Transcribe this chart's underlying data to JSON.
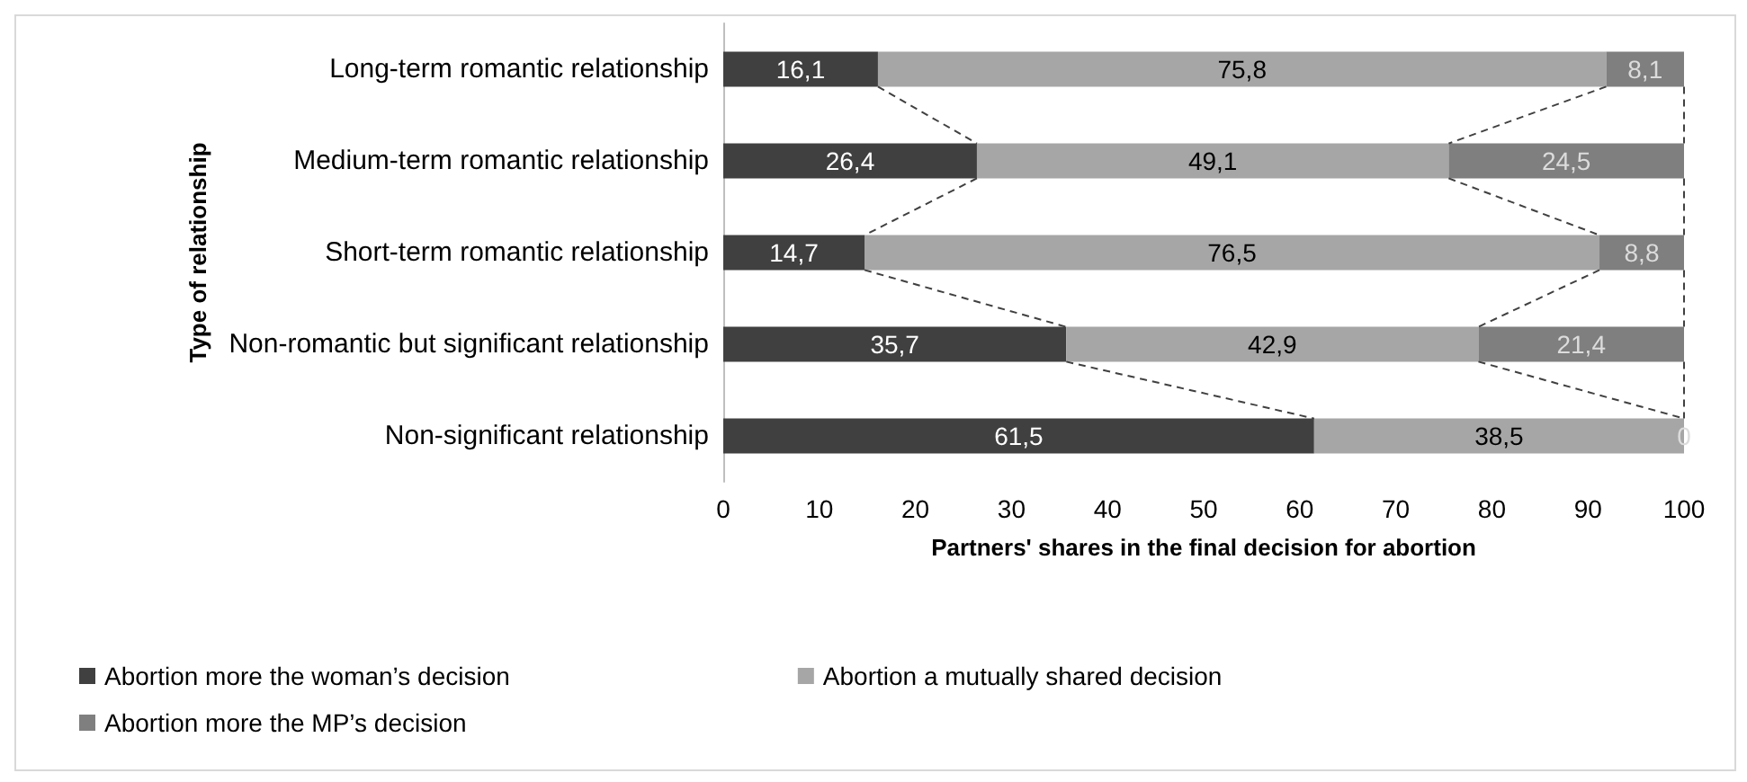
{
  "chart_data": {
    "type": "bar",
    "orientation": "horizontal",
    "stacked": true,
    "xlabel": "Partners' shares in the final decision for abortion",
    "ylabel": "Type of relationship",
    "categories": [
      "Long-term romantic relationship",
      "Medium-term romantic relationship",
      "Short-term romantic relationship",
      "Non-romantic but significant relationship",
      "Non-significant relationship"
    ],
    "series": [
      {
        "name": "Abortion more the woman’s decision",
        "color": "#404040",
        "values": [
          16.1,
          26.4,
          14.7,
          35.7,
          61.5
        ],
        "value_labels": [
          "16,1",
          "26,4",
          "14,7",
          "35,7",
          "61,5"
        ]
      },
      {
        "name": "Abortion a mutually shared decision",
        "color": "#a6a6a6",
        "values": [
          75.8,
          49.1,
          76.5,
          42.9,
          38.5
        ],
        "value_labels": [
          "75,8",
          "49,1",
          "76,5",
          "42,9",
          "38,5"
        ]
      },
      {
        "name": "Abortion more the MP’s decision",
        "color": "#7f7f7f",
        "values": [
          8.1,
          24.5,
          8.8,
          21.4,
          0
        ],
        "value_labels": [
          "8,1",
          "24,5",
          "8,8",
          "21,4",
          "0"
        ]
      }
    ],
    "xlim": [
      0,
      100
    ],
    "xticks": [
      0,
      10,
      20,
      30,
      40,
      50,
      60,
      70,
      80,
      90,
      100
    ],
    "grid": false,
    "legend": "bottom left"
  }
}
